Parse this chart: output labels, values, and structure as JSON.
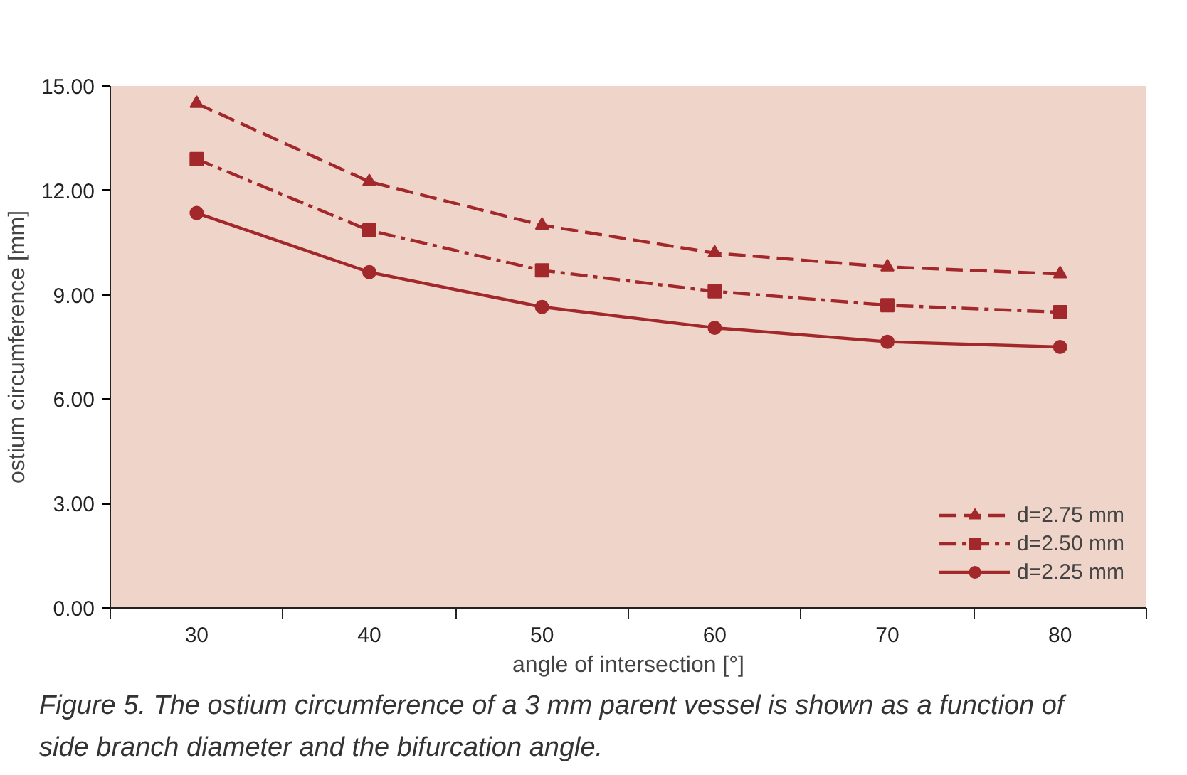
{
  "chart_data": {
    "type": "line",
    "xlabel": "angle of intersection [°]",
    "ylabel": "ostium circumference [mm]",
    "x": [
      30,
      40,
      50,
      60,
      70,
      80
    ],
    "series": [
      {
        "name": "d=2.75 mm",
        "color": "#a3282b",
        "marker": "triangle",
        "line_style": "dashed",
        "values": [
          14.5,
          12.25,
          11.0,
          10.2,
          9.8,
          9.6
        ]
      },
      {
        "name": "d=2.50 mm",
        "color": "#a3282b",
        "marker": "square",
        "line_style": "dashdot",
        "values": [
          12.9,
          10.85,
          9.7,
          9.1,
          8.7,
          8.5
        ]
      },
      {
        "name": "d=2.25 mm",
        "color": "#a3282b",
        "marker": "circle",
        "line_style": "solid",
        "values": [
          11.35,
          9.65,
          8.65,
          8.05,
          7.65,
          7.5
        ]
      }
    ],
    "xlim": [
      25,
      85
    ],
    "xticks": [
      {
        "value": 25,
        "label": null
      },
      30,
      {
        "value": 35,
        "label": null
      },
      40,
      {
        "value": 45,
        "label": null
      },
      50,
      {
        "value": 55,
        "label": null
      },
      60,
      {
        "value": 65,
        "label": null
      },
      70,
      {
        "value": 75,
        "label": null
      },
      80,
      {
        "value": 85,
        "label": null
      }
    ],
    "ylim": [
      0,
      15
    ],
    "yticks": [
      {
        "value": 0,
        "label": "0.00"
      },
      {
        "value": 3,
        "label": "3.00"
      },
      {
        "value": 6,
        "label": "6.00"
      },
      {
        "value": 9,
        "label": "9.00"
      },
      {
        "value": 12,
        "label": "12.00"
      },
      {
        "value": 15,
        "label": "15.00"
      }
    ],
    "grid": false,
    "legend": "bottom right",
    "annotations": [
      "Figure 5. The ostium circumference of a 3 mm parent vessel is shown as a function of side branch diameter and the bifurcation angle."
    ]
  }
}
